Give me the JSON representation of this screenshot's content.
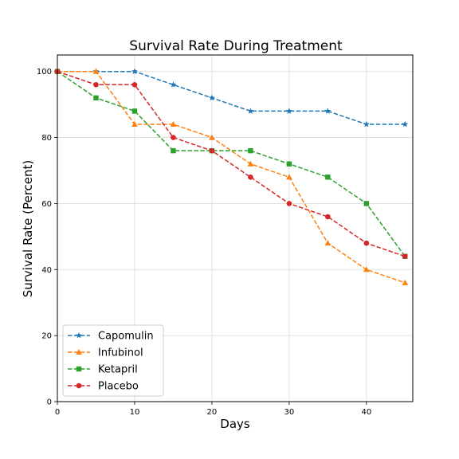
{
  "chart_data": {
    "type": "line",
    "title": "Survival Rate During Treatment",
    "xlabel": "Days",
    "ylabel": "Survival Rate (Percent)",
    "xlim": [
      0,
      46
    ],
    "ylim": [
      0,
      105
    ],
    "xticks": [
      0,
      10,
      20,
      30,
      40
    ],
    "yticks": [
      0,
      20,
      40,
      60,
      80,
      100
    ],
    "grid": true,
    "legend_position": "bottom-left",
    "x": [
      0,
      5,
      10,
      15,
      20,
      25,
      30,
      35,
      40,
      45
    ],
    "series": [
      {
        "name": "Capomulin",
        "color": "#1f77b4",
        "marker": "star",
        "values": [
          100,
          100,
          100,
          96,
          92,
          88,
          88,
          88,
          84,
          84
        ]
      },
      {
        "name": "Infubinol",
        "color": "#ff7f0e",
        "marker": "triangle",
        "values": [
          100,
          100,
          84,
          84,
          80,
          72,
          68,
          48,
          40,
          36
        ]
      },
      {
        "name": "Ketapril",
        "color": "#2ca02c",
        "marker": "square",
        "values": [
          100,
          92,
          88,
          76,
          76,
          76,
          72,
          68,
          60,
          44
        ]
      },
      {
        "name": "Placebo",
        "color": "#d62728",
        "marker": "circle",
        "values": [
          100,
          96,
          96,
          80,
          76,
          68,
          60,
          56,
          48,
          44
        ]
      }
    ]
  }
}
